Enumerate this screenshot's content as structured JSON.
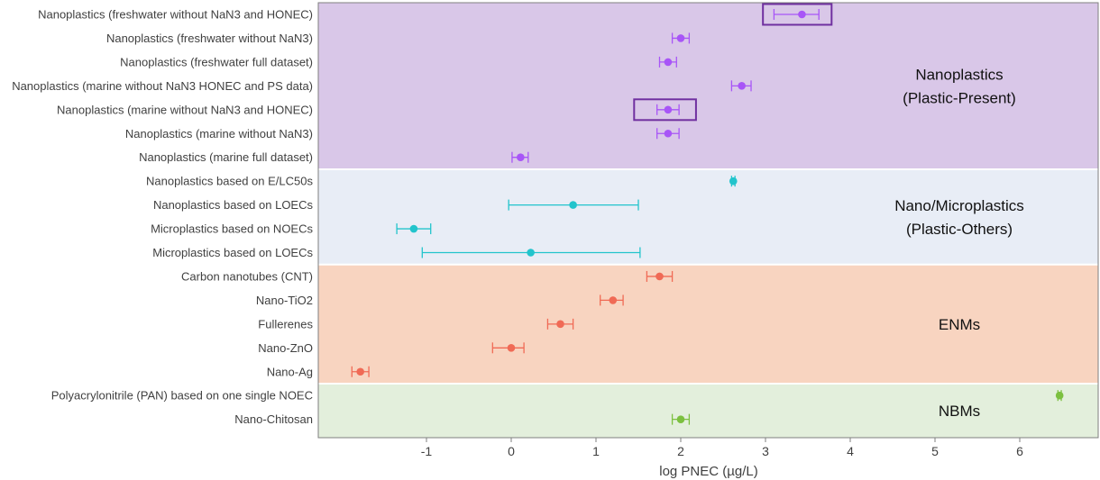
{
  "chart_data": {
    "type": "scatter",
    "subtype": "forest-plot",
    "title": "",
    "xlabel": "log PNEC (µg/L)",
    "ylabel": "",
    "xlim": [
      -2.0,
      7.0
    ],
    "xticks": [
      -1,
      0,
      1,
      2,
      3,
      4,
      5,
      6
    ],
    "grid": false,
    "groups": [
      {
        "name": "Nanoplastics (Plastic-Present)",
        "label_lines": [
          "Nanoplastics",
          "(Plastic-Present)"
        ],
        "color": "#d9c7e8",
        "marker_color": "#a855f7",
        "rows": [
          0,
          6
        ]
      },
      {
        "name": "Nano/Microplastics (Plastic-Others)",
        "label_lines": [
          "Nano/Microplastics",
          "(Plastic-Others)"
        ],
        "color": "#e8edf6",
        "marker_color": "#22c4cc",
        "rows": [
          7,
          10
        ]
      },
      {
        "name": "ENMs",
        "label_lines": [
          "ENMs"
        ],
        "color": "#f8d4c0",
        "marker_color": "#f06a55",
        "rows": [
          11,
          15
        ]
      },
      {
        "name": "NBMs",
        "label_lines": [
          "NBMs"
        ],
        "color": "#e3efdc",
        "marker_color": "#7cc040",
        "rows": [
          16,
          17
        ]
      }
    ],
    "categories": [
      "Nanoplastics (freshwater without NaN3 and HONEC)",
      "Nanoplastics (freshwater without NaN3)",
      "Nanoplastics (freshwater full dataset)",
      "Nanoplastics (marine without NaN3 HONEC and PS data)",
      "Nanoplastics (marine without NaN3 and HONEC)",
      "Nanoplastics (marine without NaN3)",
      "Nanoplastics (marine full dataset)",
      "Nanoplastics based on E/LC50s",
      "Nanoplastics based on LOECs",
      "Microplastics based on NOECs",
      "Microplastics based on LOECs",
      "Carbon nanotubes (CNT)",
      "Nano-TiO2",
      "Fullerenes",
      "Nano-ZnO",
      "Nano-Ag",
      "Polyacrylonitrile (PAN) based on one single NOEC",
      "Nano-Chitosan"
    ],
    "values": [
      3.43,
      2.0,
      1.85,
      2.72,
      1.85,
      1.85,
      0.11,
      2.62,
      0.73,
      -1.15,
      0.23,
      1.75,
      1.2,
      0.58,
      0.0,
      -1.78,
      6.47,
      2.0
    ],
    "lower": [
      3.1,
      1.9,
      1.75,
      2.6,
      1.72,
      1.72,
      0.01,
      2.6,
      -0.03,
      -1.35,
      -1.05,
      1.6,
      1.05,
      0.43,
      -0.22,
      -1.88,
      6.45,
      1.9
    ],
    "upper": [
      3.63,
      2.1,
      1.95,
      2.83,
      1.98,
      1.98,
      0.2,
      2.64,
      1.5,
      -0.95,
      1.52,
      1.9,
      1.32,
      0.73,
      0.15,
      -1.68,
      6.49,
      2.1
    ],
    "highlight_boxes": [
      {
        "row": 0,
        "x_range": [
          2.97,
          3.78
        ]
      },
      {
        "row": 4,
        "x_range": [
          1.45,
          2.18
        ]
      }
    ],
    "highlight_color": "#7030a0"
  }
}
